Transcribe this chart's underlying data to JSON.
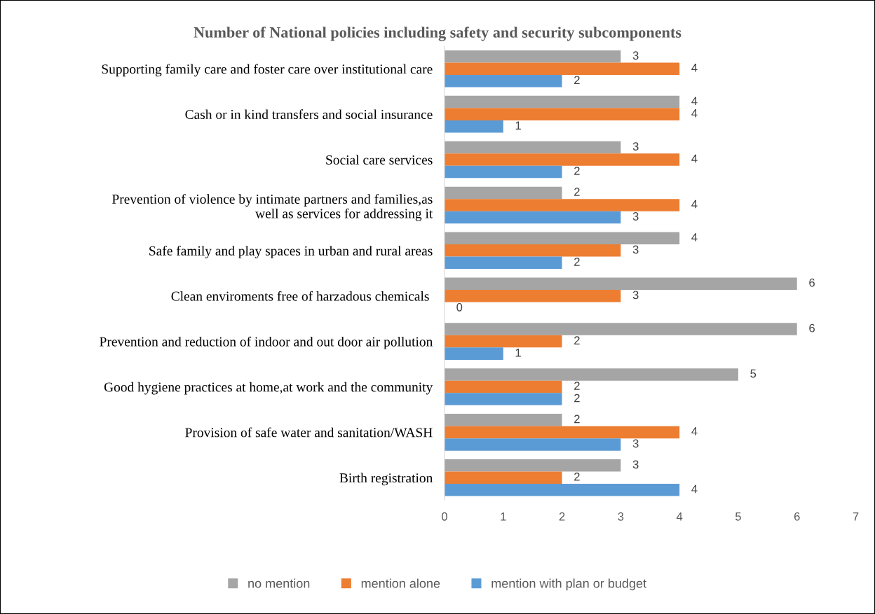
{
  "chart_data": {
    "type": "bar",
    "orientation": "horizontal",
    "title": "Number of National policies including safety and security subcomponents",
    "categories": [
      "Supporting family care and foster care over institutional care",
      "Cash or in kind transfers and social insurance",
      "Social care services",
      "Prevention of violence by intimate partners and families,as\nwell as services for addressing it",
      "Safe family and play spaces in urban and rural areas",
      "Clean enviroments free of harzadous chemicals ",
      "Prevention and reduction of indoor and out door air pollution",
      "Good hygiene practices at home,at work and the community",
      "Provision of safe water and sanitation/WASH",
      "Birth registration"
    ],
    "series": [
      {
        "name": "no mention",
        "color": "#a5a5a5",
        "values": [
          3,
          4,
          3,
          2,
          4,
          6,
          6,
          5,
          2,
          3
        ]
      },
      {
        "name": "mention alone",
        "color": "#ed7d31",
        "values": [
          4,
          4,
          4,
          4,
          3,
          3,
          2,
          2,
          4,
          2
        ]
      },
      {
        "name": "mention with plan or budget",
        "color": "#5b9bd5",
        "values": [
          2,
          1,
          2,
          3,
          2,
          0,
          1,
          2,
          3,
          4
        ]
      }
    ],
    "xlim": [
      0,
      7
    ],
    "xticks": [
      0,
      1,
      2,
      3,
      4,
      5,
      6,
      7
    ],
    "data_labels": true,
    "grid": false,
    "legend": "bottom"
  }
}
